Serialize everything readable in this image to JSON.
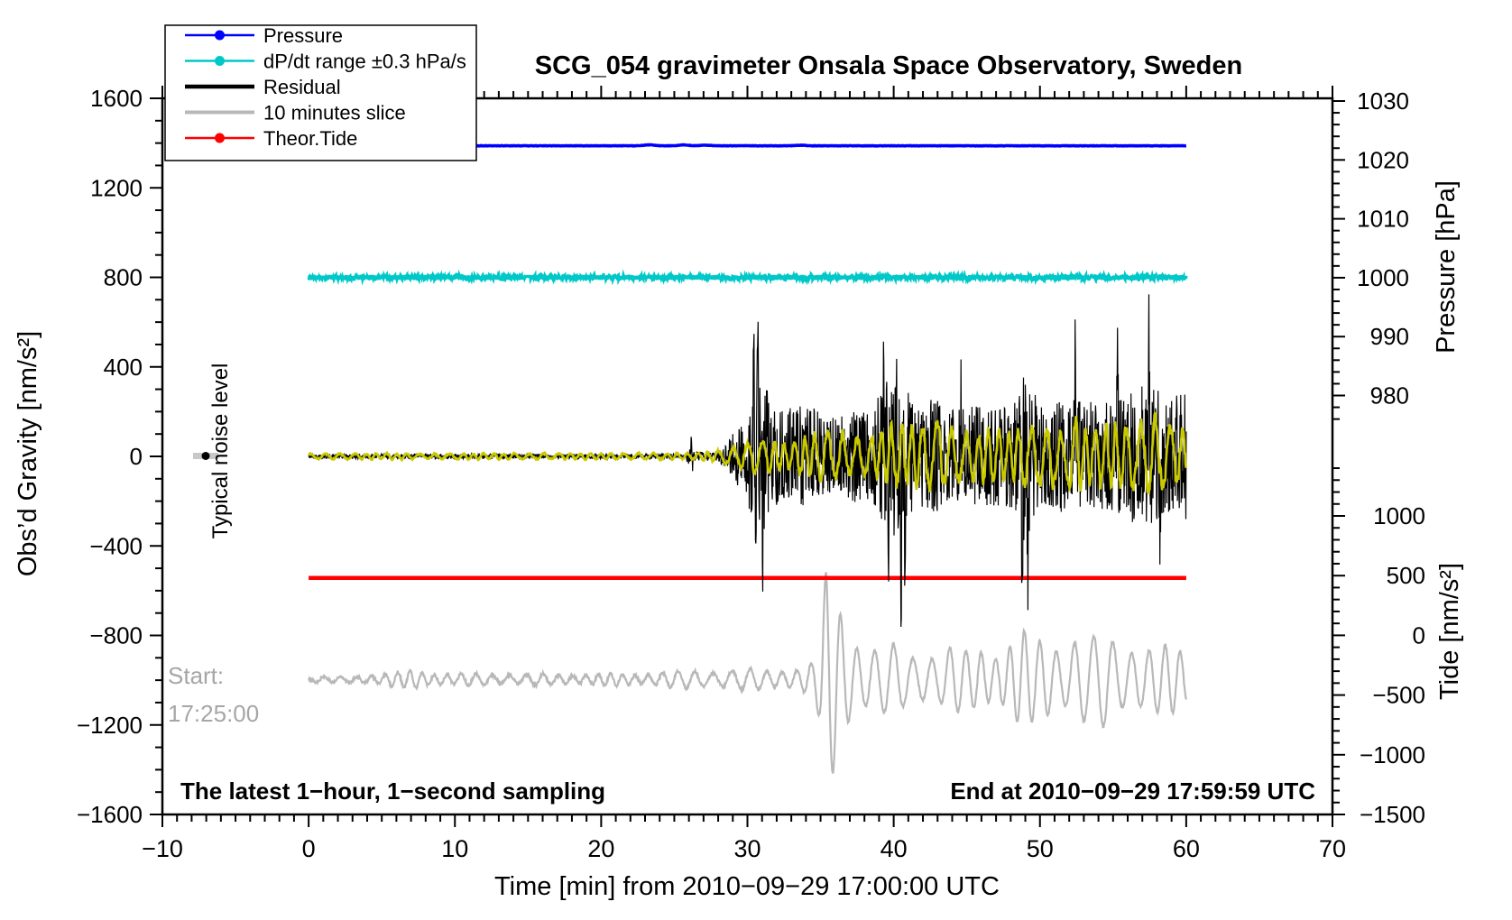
{
  "title": "SCG_054 gravimeter Onsala Space Observatory, Sweden",
  "legend": {
    "items": [
      {
        "label": "Pressure",
        "color": "#0000ff",
        "dot": true,
        "lw": 2.6
      },
      {
        "label": "dP/dt range ±0.3 hPa/s",
        "color": "#00c8c8",
        "dot": true,
        "lw": 2.6
      },
      {
        "label": "Residual",
        "color": "#000000",
        "dot": false,
        "lw": 4.5
      },
      {
        "label": "10 minutes slice",
        "color": "#b8b8b8",
        "dot": false,
        "lw": 4.0
      },
      {
        "label": "Theor.Tide",
        "color": "#ff0000",
        "dot": true,
        "lw": 2.6
      }
    ]
  },
  "annotations": {
    "noise_level": "Typical noise level",
    "start_line1": "Start:",
    "start_line2": "17:25:00",
    "sampling_note": "The latest 1−hour, 1−second sampling",
    "end_note": "End at 2010−09−29 17:59:59 UTC",
    "start_color": "#a6a6a6"
  },
  "axes": {
    "x": {
      "label": "Time [min] from 2010−09−29 17:00:00 UTC",
      "min": -10,
      "max": 70,
      "major": 10,
      "minor": 1
    },
    "gravity": {
      "label": "Obs’d Gravity [nm/s²]",
      "min": -1600,
      "max": 1600,
      "major": 400,
      "minor": 100
    },
    "pressure": {
      "label": "Pressure [hPa]",
      "tick_labels": [
        1030,
        1020,
        1010,
        1000,
        990,
        980
      ],
      "minor": 2,
      "tick_lo": 976,
      "tick_hi": 1030
    },
    "tide": {
      "label": "Tide [nm/s²]",
      "tick_labels": [
        1000,
        500,
        0,
        -500,
        -1000,
        -1500
      ],
      "minor": 100,
      "tick_lo": -1500,
      "tick_hi": 1400
    }
  },
  "chart_data": {
    "type": "line",
    "x_unit": "minutes from 2010-09-29 17:00:00 UTC",
    "x_range": [
      0,
      60
    ],
    "grid": false,
    "legend_position": "top-left",
    "series": [
      {
        "name": "Pressure",
        "axis": "pressure",
        "color": "#0000ff",
        "style": "noisy-constant",
        "value_hpa": 1022.4,
        "noise_hpa": 0.03,
        "bumps": [
          [
            23.3,
            0.16
          ],
          [
            25.6,
            0.13
          ],
          [
            27.1,
            0.1
          ],
          [
            33.6,
            0.09
          ]
        ]
      },
      {
        "name": "dP/dt range ±0.3 hPa/s",
        "axis": "gravity",
        "color": "#00c8c8",
        "style": "noisy-constant",
        "value": 800,
        "noise": 11
      },
      {
        "name": "Residual",
        "axis": "gravity",
        "color": "#000000",
        "style": "seismogram",
        "baseline": 0,
        "envelope": [
          [
            0,
            12
          ],
          [
            25,
            12
          ],
          [
            25.8,
            14
          ],
          [
            26.1,
            60
          ],
          [
            26.4,
            22
          ],
          [
            27.6,
            20
          ],
          [
            28.4,
            45
          ],
          [
            29,
            110
          ],
          [
            29.6,
            170
          ],
          [
            30.1,
            260
          ],
          [
            30.5,
            420
          ],
          [
            31,
            380
          ],
          [
            31.6,
            260
          ],
          [
            32.5,
            210
          ],
          [
            33.5,
            250
          ],
          [
            34.5,
            230
          ],
          [
            35.5,
            180
          ],
          [
            36.5,
            190
          ],
          [
            37.5,
            220
          ],
          [
            38.5,
            210
          ],
          [
            39.2,
            330
          ],
          [
            39.8,
            380
          ],
          [
            40.3,
            420
          ],
          [
            40.8,
            330
          ],
          [
            41.5,
            250
          ],
          [
            42.5,
            270
          ],
          [
            43.5,
            260
          ],
          [
            44.5,
            230
          ],
          [
            45.5,
            240
          ],
          [
            46.5,
            240
          ],
          [
            47.5,
            230
          ],
          [
            48.4,
            260
          ],
          [
            48.8,
            400
          ],
          [
            49.3,
            380
          ],
          [
            50,
            240
          ],
          [
            51,
            250
          ],
          [
            52,
            290
          ],
          [
            53,
            270
          ],
          [
            54,
            250
          ],
          [
            55,
            270
          ],
          [
            56,
            300
          ],
          [
            57,
            340
          ],
          [
            57.6,
            360
          ],
          [
            58.3,
            300
          ],
          [
            59,
            280
          ],
          [
            60,
            300
          ]
        ],
        "spikes": [
          [
            26.15,
            75
          ],
          [
            26.25,
            -65
          ],
          [
            30.42,
            600
          ],
          [
            30.55,
            -470
          ],
          [
            30.72,
            400
          ],
          [
            31.05,
            -545
          ],
          [
            31.3,
            340
          ],
          [
            39.3,
            480
          ],
          [
            39.62,
            -400
          ],
          [
            40.18,
            470
          ],
          [
            40.5,
            -630
          ],
          [
            40.78,
            -500
          ],
          [
            44.6,
            360
          ],
          [
            48.78,
            -570
          ],
          [
            49.15,
            -540
          ],
          [
            52.4,
            380
          ],
          [
            55.3,
            360
          ],
          [
            57.45,
            460
          ],
          [
            58.2,
            -400
          ]
        ]
      },
      {
        "name": "Residual smoothed (unlabeled yellow overlay)",
        "axis": "gravity",
        "color": "#c9c900",
        "style": "oscillation",
        "baseline": 0,
        "period_min": 0.85,
        "envelope": [
          [
            0,
            14
          ],
          [
            26,
            16
          ],
          [
            28,
            28
          ],
          [
            29.5,
            50
          ],
          [
            30.5,
            85
          ],
          [
            31.5,
            80
          ],
          [
            33,
            65
          ],
          [
            34.5,
            110
          ],
          [
            35.5,
            125
          ],
          [
            37,
            100
          ],
          [
            38.5,
            95
          ],
          [
            39.5,
            140
          ],
          [
            40.5,
            165
          ],
          [
            41.5,
            150
          ],
          [
            42.5,
            160
          ],
          [
            43.5,
            165
          ],
          [
            44.5,
            145
          ],
          [
            45.5,
            125
          ],
          [
            46.5,
            140
          ],
          [
            47.5,
            125
          ],
          [
            48.5,
            130
          ],
          [
            49.5,
            155
          ],
          [
            50.5,
            140
          ],
          [
            51.5,
            150
          ],
          [
            52.5,
            175
          ],
          [
            53.5,
            155
          ],
          [
            54.5,
            140
          ],
          [
            55.5,
            160
          ],
          [
            56.5,
            180
          ],
          [
            57.5,
            195
          ],
          [
            58.5,
            165
          ],
          [
            59.2,
            150
          ],
          [
            60,
            160
          ]
        ]
      },
      {
        "name": "10 minutes slice",
        "axis": "tide",
        "color": "#b8b8b8",
        "style": "oscillation",
        "baseline": -370,
        "period_min": 1.15,
        "envelope": [
          [
            0,
            18
          ],
          [
            1.5,
            25
          ],
          [
            3,
            35
          ],
          [
            5,
            45
          ],
          [
            6.5,
            70
          ],
          [
            7.5,
            95
          ],
          [
            8.5,
            60
          ],
          [
            10,
            45
          ],
          [
            12,
            50
          ],
          [
            14,
            45
          ],
          [
            16,
            50
          ],
          [
            18,
            45
          ],
          [
            20,
            50
          ],
          [
            22,
            55
          ],
          [
            24,
            60
          ],
          [
            25.5,
            70
          ],
          [
            26.5,
            85
          ],
          [
            27.5,
            80
          ],
          [
            28.5,
            90
          ],
          [
            29.5,
            85
          ],
          [
            30.5,
            95
          ],
          [
            31.5,
            90
          ],
          [
            32.5,
            95
          ],
          [
            33.5,
            105
          ],
          [
            34.4,
            140
          ],
          [
            34.9,
            300
          ],
          [
            35.4,
            1000
          ],
          [
            36.0,
            900
          ],
          [
            36.6,
            650
          ],
          [
            37.2,
            450
          ],
          [
            38,
            300
          ],
          [
            39,
            260
          ],
          [
            40,
            310
          ],
          [
            41,
            240
          ],
          [
            42,
            270
          ],
          [
            43,
            220
          ],
          [
            44,
            290
          ],
          [
            45,
            250
          ],
          [
            46,
            310
          ],
          [
            47,
            270
          ],
          [
            48,
            340
          ],
          [
            48.9,
            420
          ],
          [
            49.6,
            340
          ],
          [
            50.5,
            390
          ],
          [
            51.5,
            320
          ],
          [
            52.5,
            430
          ],
          [
            53.5,
            360
          ],
          [
            54.5,
            410
          ],
          [
            55.5,
            320
          ],
          [
            56.5,
            360
          ],
          [
            57.5,
            300
          ],
          [
            58.5,
            290
          ],
          [
            59.3,
            280
          ],
          [
            60,
            240
          ]
        ]
      },
      {
        "name": "Theor.Tide",
        "axis": "tide",
        "color": "#ff0000",
        "style": "constant",
        "value": 480
      }
    ],
    "noise_marker": {
      "x_min": -7,
      "gravity": 0,
      "label": "Typical noise level"
    }
  }
}
